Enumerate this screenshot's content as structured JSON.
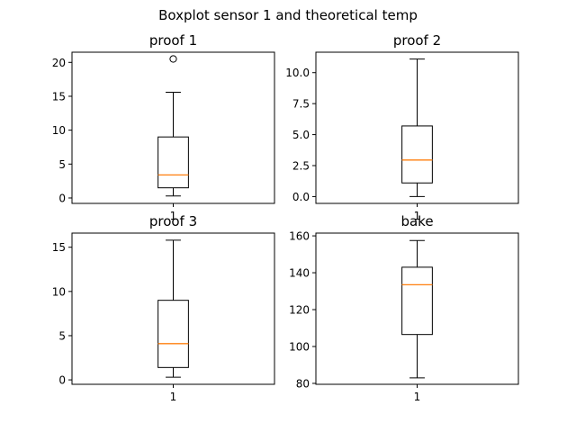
{
  "figure": {
    "suptitle": "Boxplot sensor 1 and theoretical temp"
  },
  "chart_data": [
    {
      "type": "boxplot",
      "title": "proof 1",
      "categories": [
        "1"
      ],
      "boxes": [
        {
          "whislo": 0.3,
          "q1": 1.5,
          "med": 3.4,
          "q3": 9.0,
          "whishi": 15.6,
          "fliers": [
            20.5
          ]
        }
      ],
      "ylim": [
        -0.8,
        21.5
      ],
      "yticks": [
        0,
        5,
        10,
        15,
        20
      ],
      "ytick_labels": [
        "0",
        "5",
        "10",
        "15",
        "20"
      ],
      "grid": false
    },
    {
      "type": "boxplot",
      "title": "proof 2",
      "categories": [
        "1"
      ],
      "boxes": [
        {
          "whislo": 0.0,
          "q1": 1.1,
          "med": 2.95,
          "q3": 5.7,
          "whishi": 11.1,
          "fliers": []
        }
      ],
      "ylim": [
        -0.55,
        11.65
      ],
      "yticks": [
        0,
        2.5,
        5,
        7.5,
        10
      ],
      "ytick_labels": [
        "0.0",
        "2.5",
        "5.0",
        "7.5",
        "10.0"
      ],
      "grid": false
    },
    {
      "type": "boxplot",
      "title": "proof 3",
      "categories": [
        "1"
      ],
      "boxes": [
        {
          "whislo": 0.3,
          "q1": 1.4,
          "med": 4.1,
          "q3": 9.0,
          "whishi": 15.8,
          "fliers": []
        }
      ],
      "ylim": [
        -0.5,
        16.6
      ],
      "yticks": [
        0,
        5,
        10,
        15
      ],
      "ytick_labels": [
        "0",
        "5",
        "10",
        "15"
      ],
      "grid": false
    },
    {
      "type": "boxplot",
      "title": "bake",
      "categories": [
        "1"
      ],
      "boxes": [
        {
          "whislo": 83.0,
          "q1": 106.5,
          "med": 133.5,
          "q3": 143.0,
          "whishi": 157.5,
          "fliers": []
        }
      ],
      "ylim": [
        79.5,
        161.5
      ],
      "yticks": [
        80,
        100,
        120,
        140,
        160
      ],
      "ytick_labels": [
        "80",
        "100",
        "120",
        "140",
        "160"
      ],
      "grid": false
    }
  ],
  "colors": {
    "box": "#000000",
    "median": "#ff7f0e",
    "background": "#ffffff"
  }
}
